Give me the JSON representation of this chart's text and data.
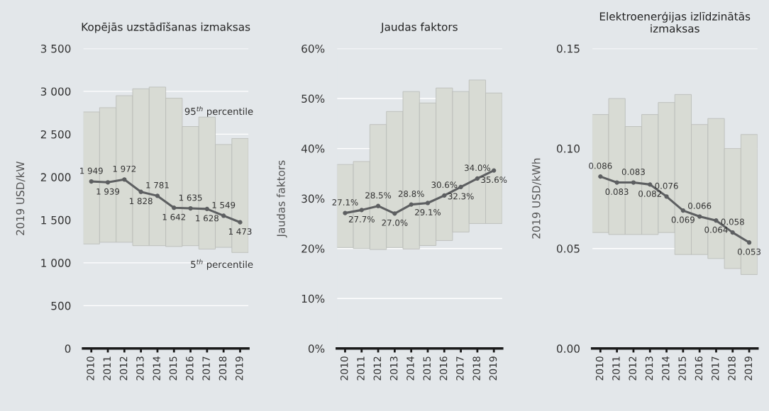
{
  "chart_data": [
    {
      "type": "bar",
      "title": "Kopējās uzstādīšanas izmaksas",
      "ylabel": "2019 USD/kW",
      "categories": [
        "2010",
        "2011",
        "2012",
        "2013",
        "2014",
        "2015",
        "2016",
        "2017",
        "2018",
        "2019"
      ],
      "series": [
        {
          "color": "#d8dbd4",
          "base": [
            1220,
            1240,
            1240,
            1200,
            1200,
            1190,
            1200,
            1160,
            1180,
            1120
          ],
          "values": [
            1540,
            1570,
            1710,
            1830,
            1850,
            1730,
            1390,
            1540,
            1200,
            1330
          ]
        },
        {
          "type": "line",
          "color": "#5d5f61",
          "marker": "circle",
          "values": [
            1949,
            1939,
            1972,
            1828,
            1781,
            1642,
            1635,
            1628,
            1549,
            1473
          ],
          "value_labels": [
            "1 949",
            "1 939",
            "1 972",
            "1 828",
            "1 781",
            "1 642",
            "1 635",
            "1 628",
            "1 549",
            "1 473"
          ]
        }
      ],
      "ylim": [
        0,
        3500
      ],
      "yticks": [
        0,
        500,
        {
          "value": 1000,
          "label": "1 000"
        },
        {
          "value": 1500,
          "label": "1 500"
        },
        {
          "value": 2000,
          "label": "2 000"
        },
        {
          "value": 2500,
          "label": "2 500"
        },
        {
          "value": 3000,
          "label": "3 000"
        },
        {
          "value": 3500,
          "label": "3 500"
        }
      ],
      "grid": "y",
      "annotations": [
        "95$^{th}$ percentile",
        "5$^{th}$ percentile"
      ]
    },
    {
      "type": "bar",
      "title": "Jaudas faktors",
      "ylabel": "Jaudas faktors",
      "categories": [
        "2010",
        "2011",
        "2012",
        "2013",
        "2014",
        "2015",
        "2016",
        "2017",
        "2018",
        "2019"
      ],
      "series": [
        {
          "color": "#d8dbd4",
          "base": [
            20.2,
            20.0,
            19.8,
            20.2,
            19.9,
            20.6,
            21.6,
            23.3,
            25.0,
            25.0
          ],
          "values": [
            16.6,
            17.4,
            25.0,
            27.2,
            31.5,
            28.5,
            30.5,
            28.1,
            28.7,
            26.1
          ]
        },
        {
          "type": "line",
          "color": "#5d5f61",
          "marker": "circle",
          "values": [
            27.1,
            27.7,
            28.5,
            27.0,
            28.8,
            29.1,
            30.6,
            32.3,
            34.0,
            35.6
          ],
          "value_labels": [
            "27.1%",
            "27.7%",
            "28.5%",
            "27.0%",
            "28.8%",
            "29.1%",
            "30.6%",
            "32.3%",
            "34.0%",
            "35.6%"
          ]
        }
      ],
      "ylim": [
        0,
        60
      ],
      "yticks": [
        {
          "value": 0,
          "label": "0%"
        },
        {
          "value": 10,
          "label": "10%"
        },
        {
          "value": 20,
          "label": "20%"
        },
        {
          "value": 30,
          "label": "30%"
        },
        {
          "value": 40,
          "label": "40%"
        },
        {
          "value": 50,
          "label": "50%"
        },
        {
          "value": 60,
          "label": "60%"
        }
      ],
      "grid": "y"
    },
    {
      "type": "bar",
      "title": "Elektroenerģijas izlīdzinātās izmaksas",
      "ylabel": "2019 USD/kWh",
      "categories": [
        "2010",
        "2011",
        "2012",
        "2013",
        "2014",
        "2015",
        "2016",
        "2017",
        "2018",
        "2019"
      ],
      "series": [
        {
          "color": "#d8dbd4",
          "base": [
            0.058,
            0.057,
            0.057,
            0.057,
            0.058,
            0.047,
            0.047,
            0.045,
            0.04,
            0.037
          ],
          "values": [
            0.059,
            0.068,
            0.054,
            0.06,
            0.065,
            0.08,
            0.065,
            0.07,
            0.06,
            0.07
          ]
        },
        {
          "type": "line",
          "color": "#5d5f61",
          "marker": "circle",
          "values": [
            0.086,
            0.083,
            0.083,
            0.082,
            0.076,
            0.069,
            0.066,
            0.064,
            0.058,
            0.053
          ],
          "data_labels": true
        }
      ],
      "ylim": [
        0,
        0.15
      ],
      "yticks": [
        {
          "value": 0,
          "label": "0.00"
        },
        {
          "value": 0.05,
          "label": "0.05"
        },
        {
          "value": 0.1,
          "label": "0.10"
        },
        {
          "value": 0.15,
          "label": "0.15"
        }
      ],
      "grid": "y"
    }
  ]
}
